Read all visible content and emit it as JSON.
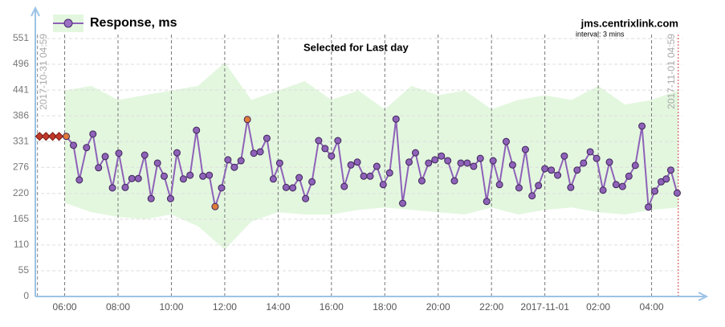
{
  "chart_data": {
    "type": "line",
    "title": "Selected for Last day",
    "site": "jms.centrixlink.com",
    "interval": "interval: 3 mins",
    "xlim": [
      4.9,
      30.06
    ],
    "ylim": [
      0,
      551
    ],
    "yticks": [
      0,
      55,
      110,
      165,
      220,
      276,
      331,
      386,
      441,
      496,
      551
    ],
    "xticks": [
      {
        "value": 6,
        "label": "06:00"
      },
      {
        "value": 8,
        "label": "08:00"
      },
      {
        "value": 10,
        "label": "10:00"
      },
      {
        "value": 12,
        "label": "12:00"
      },
      {
        "value": 14,
        "label": "14:00"
      },
      {
        "value": 16,
        "label": "16:00"
      },
      {
        "value": 18,
        "label": "18:00"
      },
      {
        "value": 20,
        "label": "20:00"
      },
      {
        "value": 22,
        "label": "22:00"
      },
      {
        "value": 24,
        "label": "2017-11-01"
      },
      {
        "value": 26,
        "label": "02:00"
      },
      {
        "value": 28,
        "label": "04:00"
      }
    ],
    "start_marker": {
      "value": 4.98,
      "label": "2017-10-31 04:59"
    },
    "end_marker": {
      "value": 29.0,
      "label": "2017-11-01 04:59"
    },
    "band": {
      "color": "#e3f7df",
      "x": [
        6,
        7,
        8,
        9,
        10,
        11,
        12,
        13,
        14,
        15,
        16,
        17,
        18,
        19,
        20,
        21,
        22,
        23,
        24,
        25,
        26,
        27,
        28,
        29
      ],
      "high": [
        440,
        450,
        420,
        430,
        440,
        450,
        500,
        420,
        440,
        460,
        420,
        440,
        400,
        450,
        430,
        440,
        400,
        420,
        430,
        420,
        450,
        410,
        420,
        440
      ],
      "low": [
        200,
        180,
        170,
        165,
        175,
        150,
        100,
        160,
        180,
        175,
        175,
        185,
        190,
        185,
        180,
        175,
        190,
        175,
        185,
        190,
        180,
        175,
        185,
        190
      ]
    },
    "lead_in": {
      "color": "#c0392b",
      "x": [
        5.06,
        5.3,
        5.55,
        5.79
      ],
      "values": [
        342,
        342,
        342,
        342
      ]
    },
    "highlight_color": "#e07b39",
    "highlighted": [
      0,
      23,
      28
    ],
    "x": [
      6.06,
      6.33,
      6.55,
      6.82,
      7.06,
      7.27,
      7.52,
      7.79,
      8.03,
      8.27,
      8.52,
      8.76,
      9.0,
      9.24,
      9.48,
      9.73,
      9.97,
      10.21,
      10.45,
      10.7,
      10.94,
      11.18,
      11.42,
      11.64,
      11.88,
      12.12,
      12.36,
      12.61,
      12.85,
      13.09,
      13.33,
      13.58,
      13.82,
      14.06,
      14.3,
      14.55,
      14.79,
      15.03,
      15.27,
      15.52,
      15.76,
      16.0,
      16.24,
      16.48,
      16.73,
      16.97,
      17.21,
      17.45,
      17.7,
      17.94,
      18.18,
      18.42,
      18.67,
      18.91,
      19.15,
      19.39,
      19.64,
      19.88,
      20.12,
      20.36,
      20.61,
      20.85,
      21.09,
      21.33,
      21.58,
      21.82,
      22.06,
      22.3,
      22.55,
      22.79,
      23.03,
      23.27,
      23.52,
      23.76,
      24.0,
      24.24,
      24.48,
      24.73,
      24.97,
      25.21,
      25.45,
      25.7,
      25.94,
      26.18,
      26.42,
      26.67,
      26.91,
      27.15,
      27.39,
      27.64,
      27.88,
      28.12,
      28.36,
      28.55,
      28.72,
      28.96
    ],
    "series": [
      {
        "name": "Response, ms",
        "color": "#8e62b8",
        "values": [
          342,
          323,
          249,
          318,
          347,
          275,
          299,
          232,
          306,
          233,
          252,
          252,
          302,
          209,
          285,
          257,
          209,
          307,
          251,
          259,
          355,
          257,
          259,
          192,
          232,
          292,
          276,
          290,
          378,
          306,
          309,
          338,
          251,
          285,
          233,
          232,
          254,
          209,
          245,
          333,
          316,
          300,
          333,
          235,
          281,
          287,
          257,
          257,
          278,
          239,
          264,
          379,
          199,
          287,
          307,
          247,
          285,
          292,
          300,
          290,
          247,
          285,
          285,
          278,
          295,
          203,
          290,
          239,
          331,
          281,
          232,
          314,
          215,
          237,
          273,
          270,
          259,
          300,
          233,
          270,
          285,
          309,
          295,
          227,
          287,
          239,
          235,
          257,
          280,
          364,
          191,
          225,
          245,
          251,
          270,
          221
        ]
      }
    ]
  }
}
